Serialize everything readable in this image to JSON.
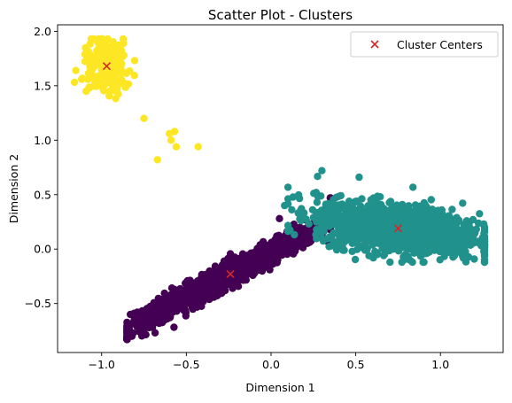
{
  "chart_data": {
    "type": "scatter",
    "title": "Scatter Plot - Clusters",
    "xlabel": "Dimension 1",
    "ylabel": "Dimension 2",
    "xlim": [
      -1.26,
      1.37
    ],
    "ylim": [
      -0.95,
      2.06
    ],
    "xticks": [
      -1.0,
      -0.5,
      0.0,
      0.5,
      1.0
    ],
    "xtick_labels": [
      "−1.0",
      "−0.5",
      "0.0",
      "0.5",
      "1.0"
    ],
    "yticks": [
      -0.5,
      0.0,
      0.5,
      1.0,
      1.5,
      2.0
    ],
    "ytick_labels": [
      "−0.5",
      "0.0",
      "0.5",
      "1.0",
      "1.5",
      "2.0"
    ],
    "grid": false,
    "legend_position": "top-right",
    "clusters": [
      {
        "color": "#440154",
        "center": [
          -0.24,
          -0.23
        ],
        "approx_extent": {
          "x": [
            -0.85,
            0.35
          ],
          "y": [
            -0.83,
            0.47
          ]
        },
        "outliers": [
          [
            -0.7,
            -0.72
          ],
          [
            -0.83,
            -0.6
          ],
          [
            -0.55,
            -0.48
          ],
          [
            0.05,
            0.28
          ]
        ]
      },
      {
        "color": "#21918c",
        "center": [
          0.75,
          0.19
        ],
        "approx_extent": {
          "x": [
            0.1,
            1.26
          ],
          "y": [
            -0.12,
            0.72
          ]
        },
        "outliers": [
          [
            0.3,
            0.72
          ],
          [
            0.52,
            0.66
          ],
          [
            1.22,
            0.06
          ],
          [
            0.08,
            0.4
          ]
        ]
      },
      {
        "color": "#fde725",
        "center": [
          -0.97,
          1.68
        ],
        "approx_extent": {
          "x": [
            -1.16,
            -0.74
          ],
          "y": [
            1.18,
            1.93
          ]
        },
        "outliers": [
          [
            -0.6,
            1.06
          ],
          [
            -0.57,
            1.08
          ],
          [
            -0.59,
            1.0
          ],
          [
            -0.56,
            0.94
          ],
          [
            -0.43,
            0.94
          ],
          [
            -0.67,
            0.82
          ],
          [
            -0.75,
            1.2
          ]
        ]
      }
    ],
    "centers_series": {
      "name": "Cluster Centers",
      "marker": "x",
      "color": "#d62728",
      "points": [
        [
          -0.97,
          1.68
        ],
        [
          -0.24,
          -0.23
        ],
        [
          0.75,
          0.19
        ]
      ]
    }
  }
}
